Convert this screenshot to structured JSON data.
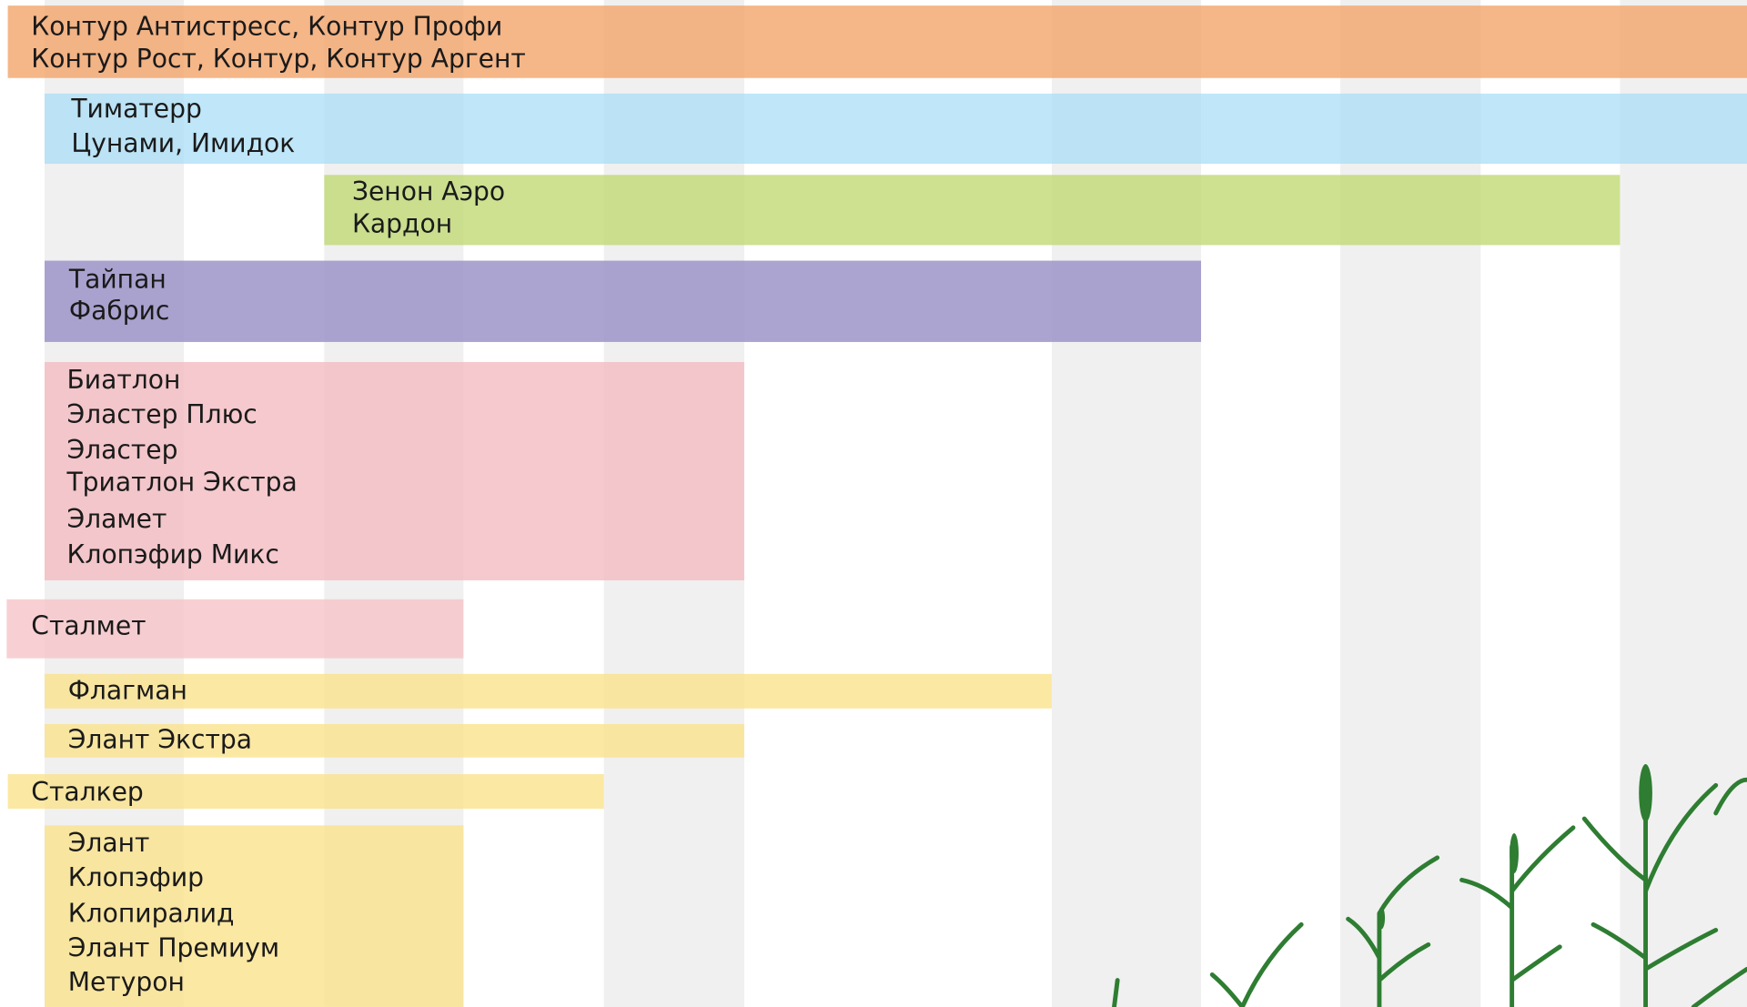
{
  "bars": [
    {
      "lines": [
        "Контур Антистресс, Контур Профи",
        "Контур Рост, Контур, Контур Аргент"
      ]
    },
    {
      "lines": [
        "Тиматерр",
        "Цунами, Имидок"
      ]
    },
    {
      "lines": [
        "Зенон Аэро",
        "Кардон"
      ]
    },
    {
      "lines": [
        "Тайпан",
        "Фабрис"
      ]
    },
    {
      "lines": [
        "Биатлон",
        "Эластер Плюс",
        "Эластер",
        "Триатлон Экстра",
        "Эламет",
        "Клопэфир Микс"
      ]
    },
    {
      "lines": [
        "Сталмет"
      ]
    },
    {
      "lines": [
        "Флагман"
      ]
    },
    {
      "lines": [
        "Элант Экстра"
      ]
    },
    {
      "lines": [
        "Сталкер"
      ]
    },
    {
      "lines": [
        "Элант",
        "Клопэфир",
        "Клопиралид",
        "Элант Премиум",
        "Метурон"
      ]
    }
  ]
}
